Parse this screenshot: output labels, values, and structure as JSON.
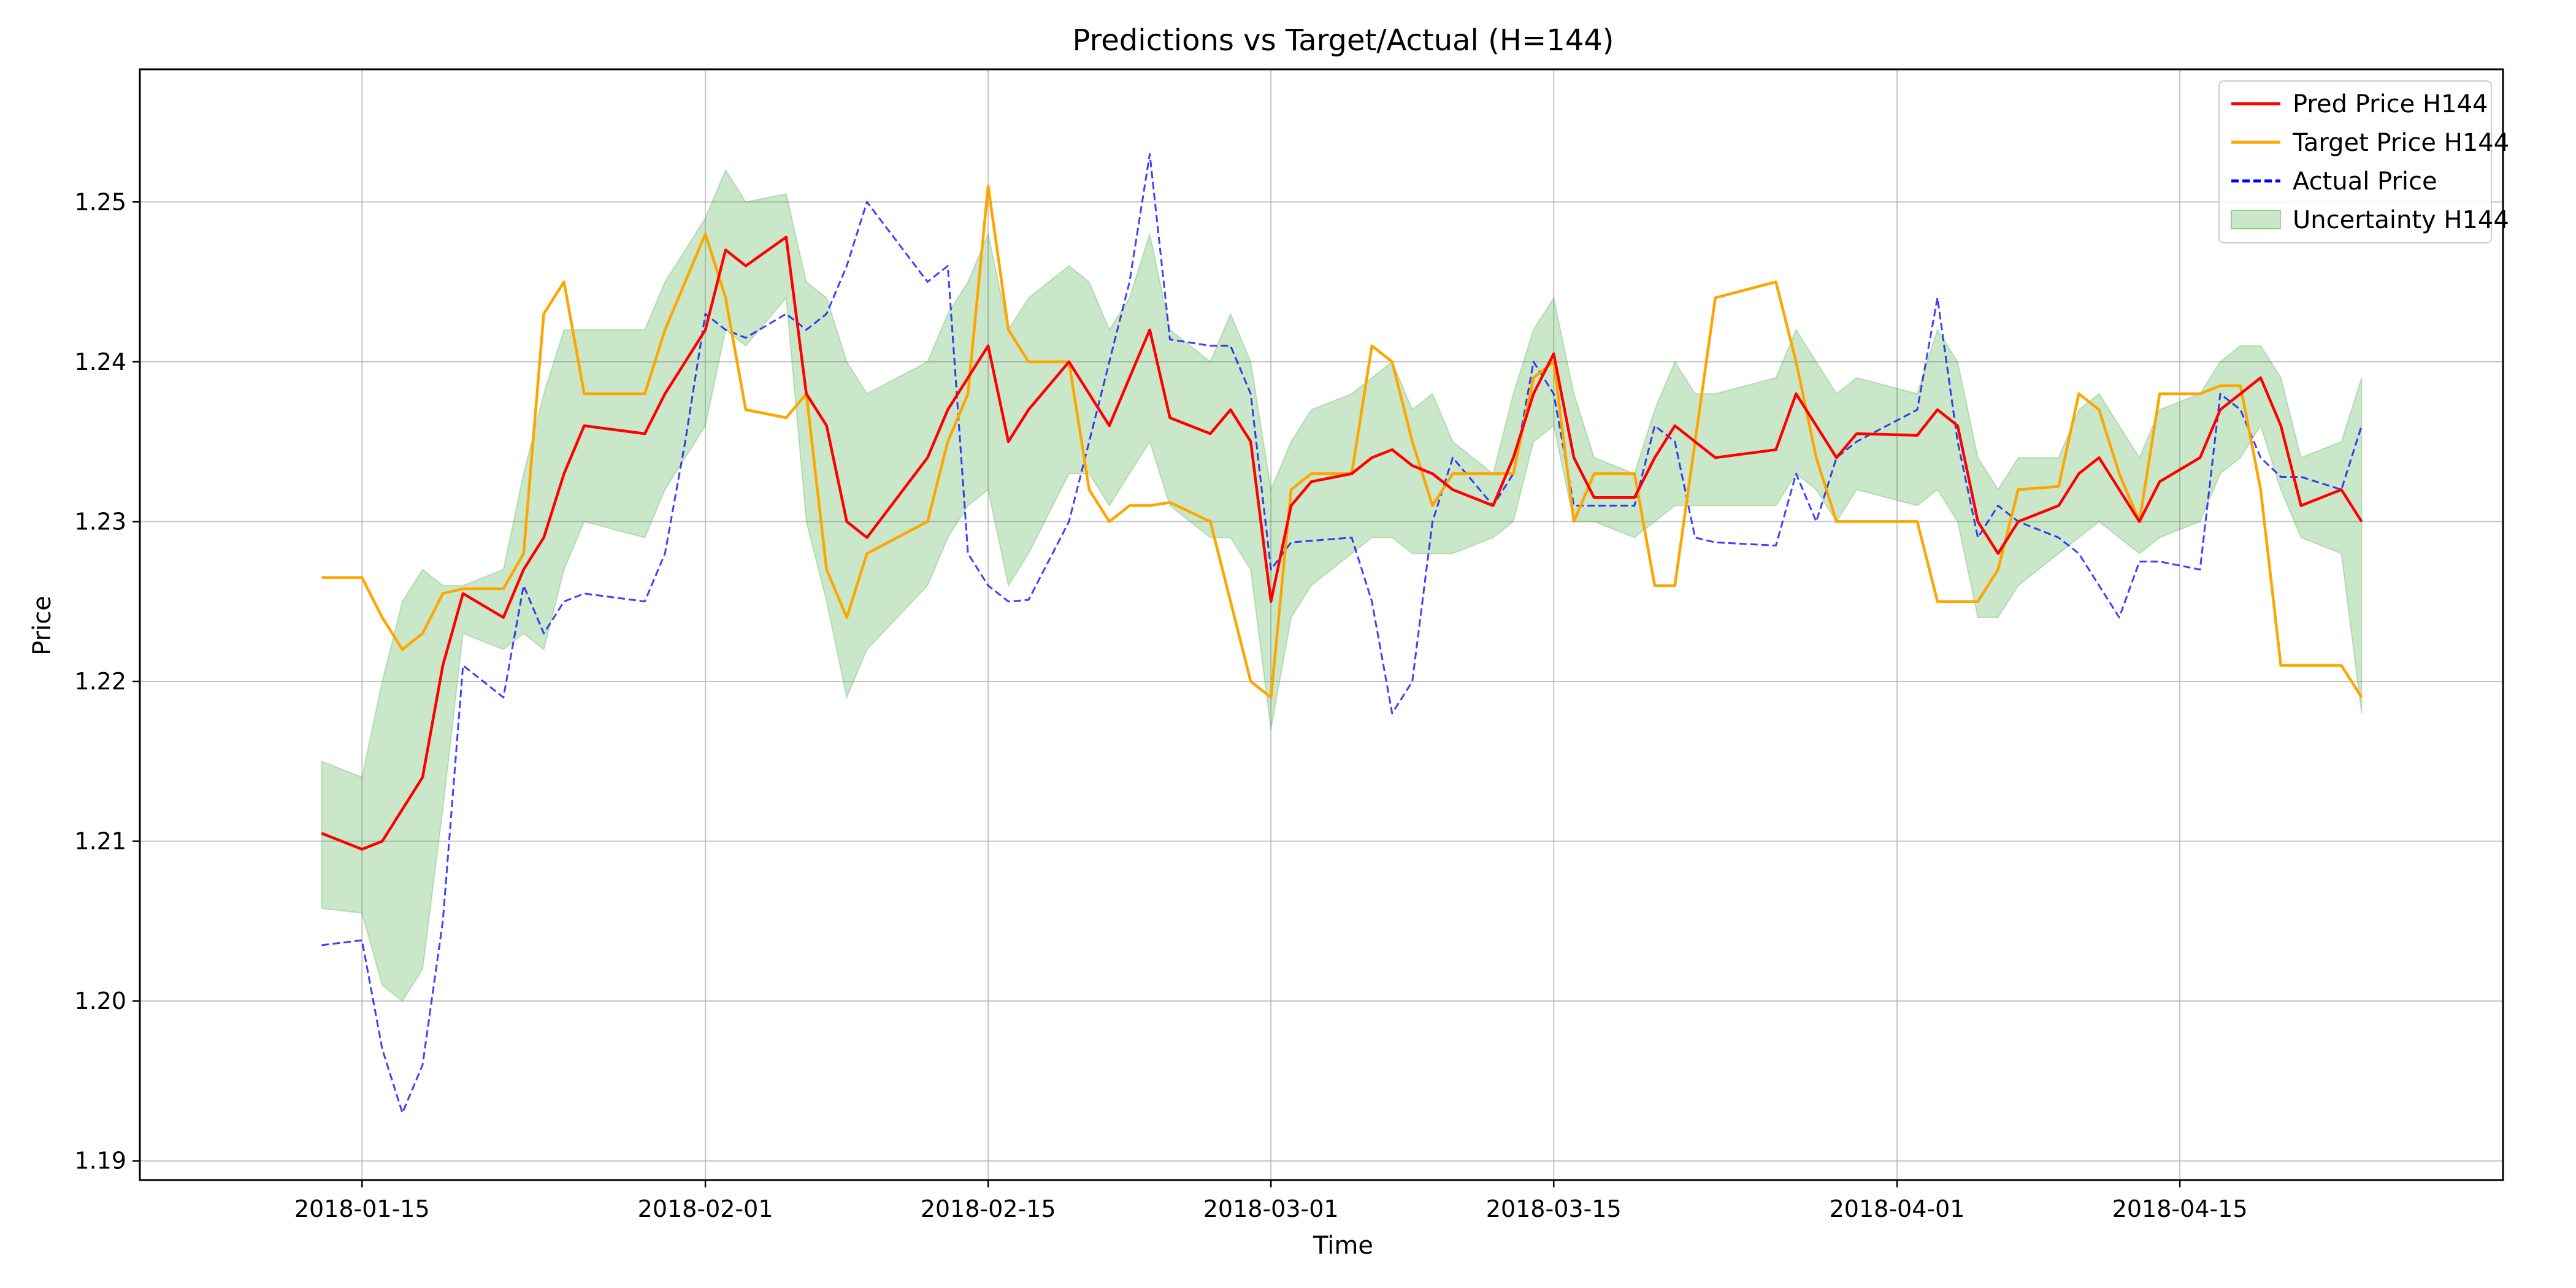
{
  "chart_data": {
    "type": "line",
    "title": "Predictions vs Target/Actual (H=144)",
    "xlabel": "Time",
    "ylabel": "Price",
    "xlim": [
      "2018-01-04",
      "2018-05-01"
    ],
    "ylim": [
      1.1888,
      1.2583
    ],
    "x_ticks": [
      "2018-01-15",
      "2018-02-01",
      "2018-02-15",
      "2018-03-01",
      "2018-03-15",
      "2018-04-01",
      "2018-04-15"
    ],
    "y_ticks": [
      1.19,
      1.2,
      1.21,
      1.22,
      1.23,
      1.24,
      1.25
    ],
    "y_tick_labels": [
      "1.19",
      "1.20",
      "1.21",
      "1.22",
      "1.23",
      "1.24",
      "1.25"
    ],
    "grid": true,
    "legend_position": "top-right",
    "colors": {
      "pred": "#ff0000",
      "target": "#ffa500",
      "actual": "#0000ff",
      "band": "#2ca02c"
    },
    "series": [
      {
        "name": "Pred Price H144",
        "style": "solid",
        "x": [
          "2018-01-13",
          "2018-01-15",
          "2018-01-16",
          "2018-01-17",
          "2018-01-18",
          "2018-01-19",
          "2018-01-20",
          "2018-01-22",
          "2018-01-23",
          "2018-01-24",
          "2018-01-25",
          "2018-01-26",
          "2018-01-29",
          "2018-01-30",
          "2018-01-31",
          "2018-02-01",
          "2018-02-02",
          "2018-02-03",
          "2018-02-05",
          "2018-02-06",
          "2018-02-07",
          "2018-02-08",
          "2018-02-09",
          "2018-02-12",
          "2018-02-13",
          "2018-02-14",
          "2018-02-15",
          "2018-02-16",
          "2018-02-17",
          "2018-02-19",
          "2018-02-20",
          "2018-02-21",
          "2018-02-22",
          "2018-02-23",
          "2018-02-24",
          "2018-02-26",
          "2018-02-27",
          "2018-02-28",
          "2018-03-01",
          "2018-03-02",
          "2018-03-03",
          "2018-03-05",
          "2018-03-06",
          "2018-03-07",
          "2018-03-08",
          "2018-03-09",
          "2018-03-10",
          "2018-03-12",
          "2018-03-13",
          "2018-03-14",
          "2018-03-15",
          "2018-03-16",
          "2018-03-17",
          "2018-03-19",
          "2018-03-20",
          "2018-03-21",
          "2018-03-22",
          "2018-03-23",
          "2018-03-26",
          "2018-03-27",
          "2018-03-28",
          "2018-03-29",
          "2018-03-30",
          "2018-04-02",
          "2018-04-03",
          "2018-04-04",
          "2018-04-05",
          "2018-04-06",
          "2018-04-07",
          "2018-04-09",
          "2018-04-10",
          "2018-04-11",
          "2018-04-12",
          "2018-04-13",
          "2018-04-14",
          "2018-04-16",
          "2018-04-17",
          "2018-04-18",
          "2018-04-19",
          "2018-04-20",
          "2018-04-21",
          "2018-04-23",
          "2018-04-24"
        ],
        "y": [
          1.2105,
          1.2095,
          1.21,
          1.212,
          1.214,
          1.221,
          1.2255,
          1.224,
          1.227,
          1.229,
          1.233,
          1.236,
          1.2355,
          1.238,
          1.24,
          1.242,
          1.247,
          1.246,
          1.2478,
          1.238,
          1.236,
          1.23,
          1.229,
          1.234,
          1.237,
          1.239,
          1.241,
          1.235,
          1.237,
          1.24,
          1.238,
          1.236,
          1.239,
          1.242,
          1.2365,
          1.2355,
          1.237,
          1.235,
          1.225,
          1.231,
          1.2325,
          1.233,
          1.234,
          1.2345,
          1.2335,
          1.233,
          1.232,
          1.231,
          1.234,
          1.238,
          1.2405,
          1.234,
          1.2315,
          1.2315,
          1.234,
          1.236,
          1.235,
          1.234,
          1.2345,
          1.238,
          1.236,
          1.234,
          1.2355,
          1.2354,
          1.237,
          1.236,
          1.23,
          1.228,
          1.23,
          1.231,
          1.233,
          1.234,
          1.232,
          1.23,
          1.2325,
          1.234,
          1.237,
          1.238,
          1.239,
          1.236,
          1.231,
          1.232,
          1.23
        ]
      },
      {
        "name": "Target Price H144",
        "style": "solid",
        "x": [
          "2018-01-13",
          "2018-01-15",
          "2018-01-16",
          "2018-01-17",
          "2018-01-18",
          "2018-01-19",
          "2018-01-20",
          "2018-01-22",
          "2018-01-23",
          "2018-01-24",
          "2018-01-25",
          "2018-01-26",
          "2018-01-29",
          "2018-01-30",
          "2018-01-31",
          "2018-02-01",
          "2018-02-02",
          "2018-02-03",
          "2018-02-05",
          "2018-02-06",
          "2018-02-07",
          "2018-02-08",
          "2018-02-09",
          "2018-02-12",
          "2018-02-13",
          "2018-02-14",
          "2018-02-15",
          "2018-02-16",
          "2018-02-17",
          "2018-02-19",
          "2018-02-20",
          "2018-02-21",
          "2018-02-22",
          "2018-02-23",
          "2018-02-24",
          "2018-02-26",
          "2018-02-27",
          "2018-02-28",
          "2018-03-01",
          "2018-03-02",
          "2018-03-03",
          "2018-03-05",
          "2018-03-06",
          "2018-03-07",
          "2018-03-08",
          "2018-03-09",
          "2018-03-10",
          "2018-03-12",
          "2018-03-13",
          "2018-03-14",
          "2018-03-15",
          "2018-03-16",
          "2018-03-17",
          "2018-03-19",
          "2018-03-20",
          "2018-03-21",
          "2018-03-22",
          "2018-03-23",
          "2018-03-26",
          "2018-03-27",
          "2018-03-28",
          "2018-03-29",
          "2018-03-30",
          "2018-04-02",
          "2018-04-03",
          "2018-04-04",
          "2018-04-05",
          "2018-04-06",
          "2018-04-07",
          "2018-04-09",
          "2018-04-10",
          "2018-04-11",
          "2018-04-12",
          "2018-04-13",
          "2018-04-14",
          "2018-04-16",
          "2018-04-17",
          "2018-04-18",
          "2018-04-19",
          "2018-04-20",
          "2018-04-21",
          "2018-04-23",
          "2018-04-24"
        ],
        "y": [
          1.2265,
          1.2265,
          1.224,
          1.222,
          1.223,
          1.2255,
          1.2258,
          1.2258,
          1.228,
          1.243,
          1.245,
          1.238,
          1.238,
          1.242,
          1.245,
          1.248,
          1.244,
          1.237,
          1.2365,
          1.238,
          1.227,
          1.224,
          1.228,
          1.23,
          1.235,
          1.238,
          1.251,
          1.242,
          1.24,
          1.24,
          1.232,
          1.23,
          1.231,
          1.231,
          1.2312,
          1.23,
          1.225,
          1.22,
          1.219,
          1.232,
          1.233,
          1.233,
          1.241,
          1.24,
          1.235,
          1.231,
          1.233,
          1.233,
          1.233,
          1.239,
          1.24,
          1.23,
          1.233,
          1.233,
          1.226,
          1.226,
          1.235,
          1.244,
          1.245,
          1.24,
          1.234,
          1.23,
          1.23,
          1.23,
          1.225,
          1.225,
          1.225,
          1.227,
          1.232,
          1.2322,
          1.238,
          1.237,
          1.233,
          1.23,
          1.238,
          1.238,
          1.2385,
          1.2385,
          1.232,
          1.221,
          1.221,
          1.221,
          1.219
        ]
      },
      {
        "name": "Actual Price",
        "style": "dashed",
        "x": [
          "2018-01-13",
          "2018-01-15",
          "2018-01-16",
          "2018-01-17",
          "2018-01-18",
          "2018-01-19",
          "2018-01-20",
          "2018-01-22",
          "2018-01-23",
          "2018-01-24",
          "2018-01-25",
          "2018-01-26",
          "2018-01-29",
          "2018-01-30",
          "2018-01-31",
          "2018-02-01",
          "2018-02-02",
          "2018-02-03",
          "2018-02-05",
          "2018-02-06",
          "2018-02-07",
          "2018-02-08",
          "2018-02-09",
          "2018-02-12",
          "2018-02-13",
          "2018-02-14",
          "2018-02-15",
          "2018-02-16",
          "2018-02-17",
          "2018-02-19",
          "2018-02-20",
          "2018-02-21",
          "2018-02-22",
          "2018-02-23",
          "2018-02-24",
          "2018-02-26",
          "2018-02-27",
          "2018-02-28",
          "2018-03-01",
          "2018-03-02",
          "2018-03-03",
          "2018-03-05",
          "2018-03-06",
          "2018-03-07",
          "2018-03-08",
          "2018-03-09",
          "2018-03-10",
          "2018-03-12",
          "2018-03-13",
          "2018-03-14",
          "2018-03-15",
          "2018-03-16",
          "2018-03-17",
          "2018-03-19",
          "2018-03-20",
          "2018-03-21",
          "2018-03-22",
          "2018-03-23",
          "2018-03-26",
          "2018-03-27",
          "2018-03-28",
          "2018-03-29",
          "2018-03-30",
          "2018-04-02",
          "2018-04-03",
          "2018-04-04",
          "2018-04-05",
          "2018-04-06",
          "2018-04-07",
          "2018-04-09",
          "2018-04-10",
          "2018-04-11",
          "2018-04-12",
          "2018-04-13",
          "2018-04-14",
          "2018-04-16",
          "2018-04-17",
          "2018-04-18",
          "2018-04-19",
          "2018-04-20",
          "2018-04-21",
          "2018-04-23",
          "2018-04-24"
        ],
        "y": [
          1.2035,
          1.2038,
          1.197,
          1.193,
          1.196,
          1.205,
          1.221,
          1.219,
          1.226,
          1.223,
          1.225,
          1.2255,
          1.225,
          1.228,
          1.235,
          1.243,
          1.242,
          1.2415,
          1.243,
          1.242,
          1.243,
          1.246,
          1.25,
          1.245,
          1.246,
          1.228,
          1.226,
          1.225,
          1.2251,
          1.23,
          1.235,
          1.24,
          1.245,
          1.253,
          1.2414,
          1.241,
          1.241,
          1.238,
          1.227,
          1.2287,
          1.2288,
          1.229,
          1.225,
          1.218,
          1.22,
          1.23,
          1.234,
          1.231,
          1.233,
          1.24,
          1.238,
          1.231,
          1.231,
          1.231,
          1.236,
          1.235,
          1.229,
          1.2287,
          1.2285,
          1.233,
          1.23,
          1.234,
          1.235,
          1.237,
          1.244,
          1.235,
          1.229,
          1.231,
          1.23,
          1.229,
          1.228,
          1.226,
          1.224,
          1.2275,
          1.2275,
          1.227,
          1.238,
          1.237,
          1.234,
          1.2328,
          1.2328,
          1.232,
          1.236
        ]
      }
    ],
    "band": {
      "name": "Uncertainty H144",
      "x": [
        "2018-01-13",
        "2018-01-15",
        "2018-01-16",
        "2018-01-17",
        "2018-01-18",
        "2018-01-19",
        "2018-01-20",
        "2018-01-22",
        "2018-01-23",
        "2018-01-24",
        "2018-01-25",
        "2018-01-26",
        "2018-01-29",
        "2018-01-30",
        "2018-01-31",
        "2018-02-01",
        "2018-02-02",
        "2018-02-03",
        "2018-02-05",
        "2018-02-06",
        "2018-02-07",
        "2018-02-08",
        "2018-02-09",
        "2018-02-12",
        "2018-02-13",
        "2018-02-14",
        "2018-02-15",
        "2018-02-16",
        "2018-02-17",
        "2018-02-19",
        "2018-02-20",
        "2018-02-21",
        "2018-02-22",
        "2018-02-23",
        "2018-02-24",
        "2018-02-26",
        "2018-02-27",
        "2018-02-28",
        "2018-03-01",
        "2018-03-02",
        "2018-03-03",
        "2018-03-05",
        "2018-03-06",
        "2018-03-07",
        "2018-03-08",
        "2018-03-09",
        "2018-03-10",
        "2018-03-12",
        "2018-03-13",
        "2018-03-14",
        "2018-03-15",
        "2018-03-16",
        "2018-03-17",
        "2018-03-19",
        "2018-03-20",
        "2018-03-21",
        "2018-03-22",
        "2018-03-23",
        "2018-03-26",
        "2018-03-27",
        "2018-03-28",
        "2018-03-29",
        "2018-03-30",
        "2018-04-02",
        "2018-04-03",
        "2018-04-04",
        "2018-04-05",
        "2018-04-06",
        "2018-04-07",
        "2018-04-09",
        "2018-04-10",
        "2018-04-11",
        "2018-04-12",
        "2018-04-13",
        "2018-04-14",
        "2018-04-16",
        "2018-04-17",
        "2018-04-18",
        "2018-04-19",
        "2018-04-20",
        "2018-04-21",
        "2018-04-23",
        "2018-04-24"
      ],
      "lower": [
        1.2058,
        1.2055,
        1.201,
        1.2,
        1.202,
        1.212,
        1.223,
        1.222,
        1.223,
        1.222,
        1.227,
        1.23,
        1.229,
        1.232,
        1.234,
        1.236,
        1.242,
        1.241,
        1.244,
        1.23,
        1.225,
        1.219,
        1.222,
        1.226,
        1.229,
        1.231,
        1.232,
        1.226,
        1.228,
        1.233,
        1.233,
        1.231,
        1.233,
        1.235,
        1.231,
        1.229,
        1.229,
        1.227,
        1.217,
        1.224,
        1.226,
        1.228,
        1.229,
        1.229,
        1.228,
        1.228,
        1.228,
        1.229,
        1.23,
        1.235,
        1.236,
        1.23,
        1.23,
        1.229,
        1.23,
        1.231,
        1.231,
        1.231,
        1.231,
        1.233,
        1.232,
        1.23,
        1.232,
        1.231,
        1.232,
        1.23,
        1.224,
        1.224,
        1.226,
        1.228,
        1.229,
        1.23,
        1.229,
        1.228,
        1.229,
        1.23,
        1.233,
        1.234,
        1.236,
        1.232,
        1.229,
        1.228,
        1.218
      ],
      "upper": [
        1.215,
        1.214,
        1.22,
        1.225,
        1.227,
        1.226,
        1.226,
        1.227,
        1.233,
        1.238,
        1.242,
        1.242,
        1.242,
        1.245,
        1.247,
        1.249,
        1.252,
        1.25,
        1.2505,
        1.245,
        1.244,
        1.24,
        1.238,
        1.24,
        1.243,
        1.245,
        1.248,
        1.242,
        1.244,
        1.246,
        1.245,
        1.242,
        1.244,
        1.248,
        1.242,
        1.24,
        1.243,
        1.24,
        1.232,
        1.235,
        1.237,
        1.238,
        1.239,
        1.24,
        1.237,
        1.238,
        1.235,
        1.233,
        1.238,
        1.242,
        1.244,
        1.238,
        1.234,
        1.233,
        1.237,
        1.24,
        1.238,
        1.238,
        1.239,
        1.242,
        1.24,
        1.238,
        1.239,
        1.238,
        1.242,
        1.24,
        1.234,
        1.232,
        1.234,
        1.234,
        1.237,
        1.238,
        1.236,
        1.234,
        1.237,
        1.238,
        1.24,
        1.241,
        1.241,
        1.239,
        1.234,
        1.235,
        1.239
      ]
    }
  }
}
